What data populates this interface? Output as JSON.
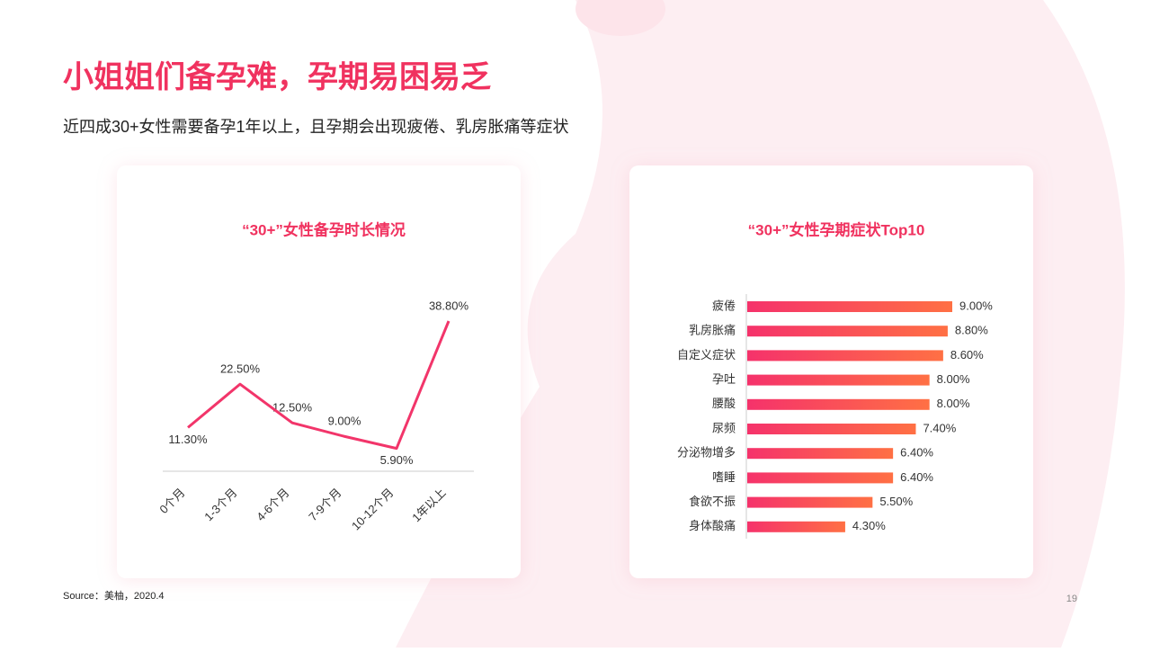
{
  "title": "小姐姐们备孕难，孕期易困易乏",
  "subtitle": "近四成30+女性需要备孕1年以上，且孕期会出现疲倦、乳房胀痛等症状",
  "source": "Source：美柚，2020.4",
  "page": "19",
  "chart_data": [
    {
      "type": "line",
      "title": "“30+”女性备孕时长情况",
      "color": "#f2356a",
      "categories": [
        "0个月",
        "1-3个月",
        "4-6个月",
        "7-9个月",
        "10-12个月",
        "1年以上"
      ],
      "values": [
        11.3,
        22.5,
        12.5,
        9.0,
        5.9,
        38.8
      ],
      "value_labels": [
        "11.30%",
        "22.50%",
        "12.50%",
        "9.00%",
        "5.90%",
        "38.80%"
      ]
    },
    {
      "type": "hbar",
      "title": "“30+”女性孕期症状Top10",
      "colors": [
        "#f5326b",
        "#ff7044"
      ],
      "categories": [
        "疲倦",
        "乳房胀痛",
        "自定义症状",
        "孕吐",
        "腰酸",
        "尿频",
        "分泌物增多",
        "嗜睡",
        "食欲不振",
        "身体酸痛"
      ],
      "values": [
        9.0,
        8.8,
        8.6,
        8.0,
        8.0,
        7.4,
        6.4,
        6.4,
        5.5,
        4.3
      ],
      "value_labels": [
        "9.00%",
        "8.80%",
        "8.60%",
        "8.00%",
        "8.00%",
        "7.40%",
        "6.40%",
        "6.40%",
        "5.50%",
        "4.30%"
      ]
    }
  ]
}
